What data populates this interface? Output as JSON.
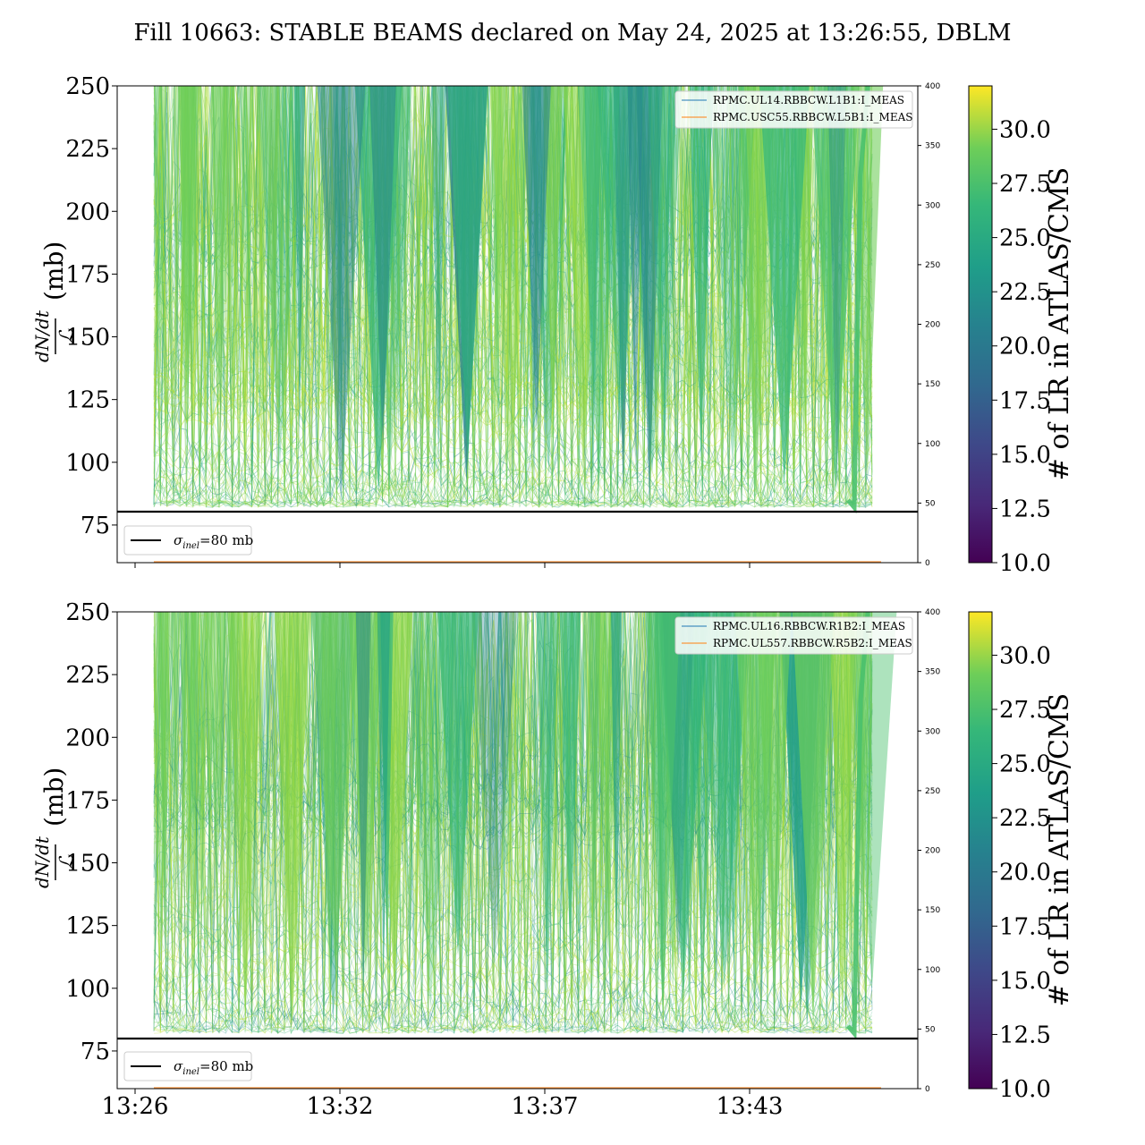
{
  "title": "Fill 10663: STABLE BEAMS declared on May 24, 2025 at 13:26:55, DBLM",
  "colors": {
    "bar_min": "#440154",
    "line_blue": "#1f77b4",
    "line_orange": "#ff7f0e",
    "threshold": "#000000"
  },
  "colorbar": {
    "label": "# of LR in ATLAS/CMS",
    "range": [
      10,
      32
    ],
    "ticks": [
      "10.0",
      "12.5",
      "15.0",
      "17.5",
      "20.0",
      "22.5",
      "25.0",
      "27.5",
      "30.0"
    ],
    "colormap": "viridis"
  },
  "chart_data": [
    {
      "type": "line",
      "panel": "top",
      "ylabel_num": "dN/dt",
      "ylabel_den": "ℒ",
      "ylabel_unit": "(mb)",
      "ylim": [
        60,
        250
      ],
      "y_ticks": [
        "75",
        "100",
        "125",
        "150",
        "175",
        "200",
        "225",
        "250"
      ],
      "y2lim": [
        0,
        400
      ],
      "y2_ticks": [
        "0",
        "50",
        "100",
        "150",
        "200",
        "250",
        "300",
        "350",
        "400"
      ],
      "x_range_minutes": [
        13.433,
        13.8
      ],
      "x_tick_labels": [],
      "threshold": {
        "value": 80,
        "label_sym": "σ",
        "label_sub": "inel",
        "label_rest": "=80 mb"
      },
      "legend": [
        "RPMC.UL14.RBBCW.L1B1:I_MEAS",
        "RPMC.USC55.RBBCW.L5B1:I_MEAS"
      ],
      "seed": 7
    },
    {
      "type": "line",
      "panel": "bottom",
      "ylabel_num": "dN/dt",
      "ylabel_den": "ℒ",
      "ylabel_unit": "(mb)",
      "ylim": [
        60,
        250
      ],
      "y_ticks": [
        "75",
        "100",
        "125",
        "150",
        "175",
        "200",
        "225",
        "250"
      ],
      "y2lim": [
        0,
        400
      ],
      "y2_ticks": [
        "0",
        "50",
        "100",
        "150",
        "200",
        "250",
        "300",
        "350",
        "400"
      ],
      "x_tick_labels": [
        "13:26",
        "13:32",
        "13:37",
        "13:43"
      ],
      "threshold": {
        "value": 80,
        "label_sym": "σ",
        "label_sub": "inel",
        "label_rest": "=80 mb"
      },
      "legend": [
        "RPMC.UL16.RBBCW.R1B2:I_MEAS",
        "RPMC.UL557.RBBCW.R5B2:I_MEAS"
      ],
      "seed": 19
    }
  ]
}
